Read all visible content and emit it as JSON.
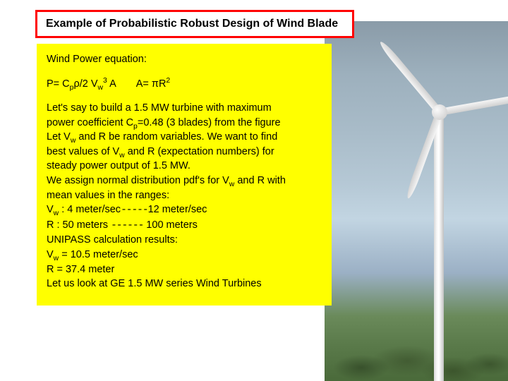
{
  "title": {
    "text": "Example of Probabilistic Robust Design of Wind Blade",
    "border_color": "#ff0000",
    "bg_color": "#ffffff",
    "text_color": "#000000",
    "fontsize": 16
  },
  "content": {
    "bg_color": "#ffff00",
    "text_color": "#000000",
    "fontsize": 14.5,
    "header": "Wind Power equation:",
    "equation": {
      "lhs_pre": "P= C",
      "sub1": "p",
      "mid1": "ρ/2 V",
      "sub2": "w",
      "sup1": "3",
      "mid2": " A",
      "rhs_pre": "A= πR",
      "sup2": "2"
    },
    "body": {
      "l1a": "Let's say to build a 1.5 MW turbine with maximum",
      "l2a": "power coefficient C",
      "l2_sub": "p",
      "l2b": "=0.48 (3 blades) from the figure",
      "l3a": "Let V",
      "l3_sub": "w",
      "l3b": " and R be random variables. We want to find",
      "l4a": "best values of V",
      "l4_sub": "w",
      "l4b": " and R (expectation numbers) for",
      "l5": "steady power output of 1.5 MW.",
      "l6a": "We assign normal distribution pdf's for V",
      "l6_sub": "w",
      "l6b": " and R with",
      "l7": "mean values in the ranges:",
      "l8a": "V",
      "l8_sub": "w",
      "l8b": " : 4 meter/sec",
      "l8_dash": "-----",
      "l8c": "12 meter/sec",
      "l9a": "R  : 50 meters ",
      "l9_dash": "------",
      "l9b": " 100 meters",
      "l10": "UNIPASS calculation results:",
      "l11a": "V",
      "l11_sub": "w",
      "l11b": " = 10.5 meter/sec",
      "l12": "R = 37.4 meter",
      "l13": "Let us look at GE 1.5 MW series Wind Turbines"
    }
  },
  "photo": {
    "description": "wind-turbine-photo",
    "sky_top_color": "#8a9ba8",
    "sky_bottom_color": "#c2d5e2",
    "ground_color": "#5a7a4a",
    "turbine_color": "#f0f0f0"
  }
}
